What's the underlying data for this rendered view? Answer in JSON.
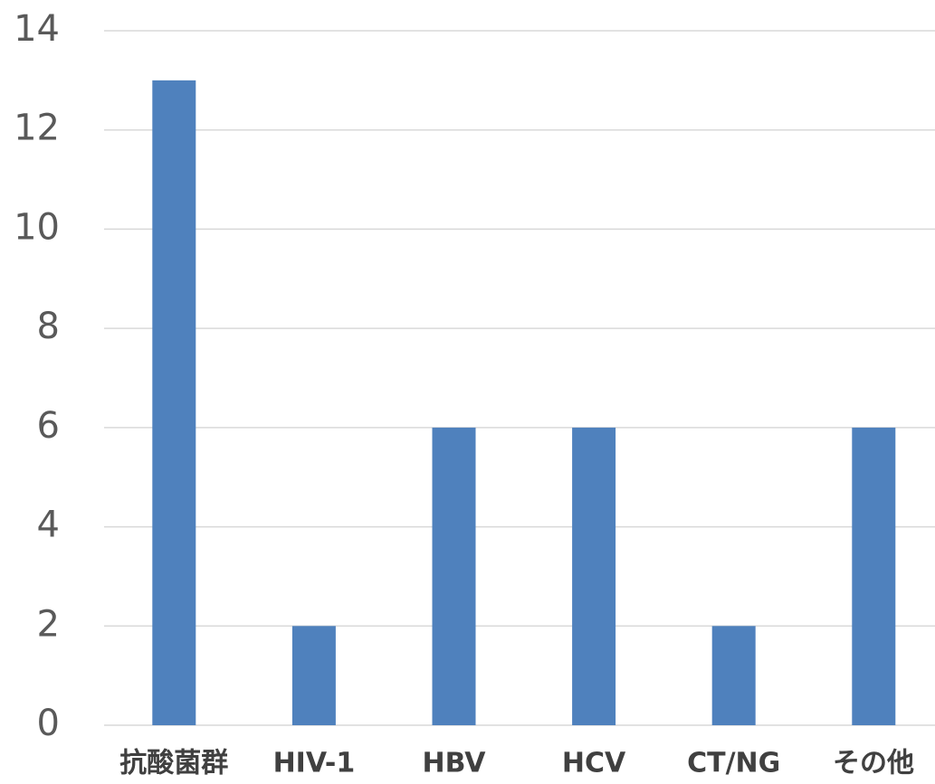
{
  "chart_data": {
    "type": "bar",
    "categories": [
      "抗酸菌群",
      "HIV-1",
      "HBV",
      "HCV",
      "CT/NG",
      "その他"
    ],
    "values": [
      13,
      2,
      6,
      6,
      2,
      6
    ],
    "color": "#4f81bd",
    "ylim": [
      0,
      14
    ],
    "yticks": [
      0,
      2,
      4,
      6,
      8,
      10,
      12,
      14
    ],
    "grid": true
  }
}
